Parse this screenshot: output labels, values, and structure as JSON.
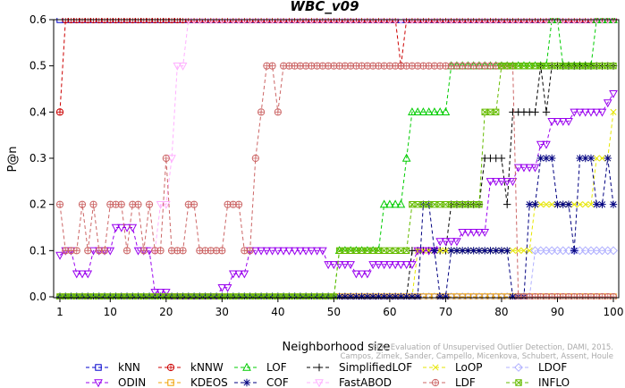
{
  "chart_data": {
    "type": "line",
    "title": "WBC_v09",
    "xlabel": "Neighborhood size",
    "ylabel": "P@n",
    "xlim": [
      1,
      100
    ],
    "ylim": [
      0,
      0.6
    ],
    "xticks": [
      1,
      10,
      20,
      30,
      40,
      50,
      60,
      70,
      80,
      90,
      100
    ],
    "yticks": [
      0.0,
      0.1,
      0.2,
      0.3,
      0.4,
      0.5,
      0.6
    ],
    "ytick_labels": [
      "0.0",
      "0.1",
      "0.2",
      "0.3",
      "0.4",
      "0.5",
      "0.6"
    ],
    "grid": false,
    "legend_position": "bottom",
    "watermark": [
      "ELKI Evaluation of Unsupervised Outlier Detection, DAMI, 2015.",
      "Campos, Zimek, Sander, Campello, Micenkova, Schubert, Assent, Houle"
    ],
    "series": [
      {
        "name": "kNN",
        "color": "#0000cc",
        "marker": "square",
        "segments": [
          [
            1,
            100,
            0.6
          ]
        ]
      },
      {
        "name": "kNNW",
        "color": "#cc0000",
        "marker": "circle",
        "segments": [
          [
            1,
            1,
            0.4
          ],
          [
            2,
            2,
            0.6
          ],
          [
            3,
            61,
            0.6
          ],
          [
            62,
            62,
            0.5
          ],
          [
            63,
            67,
            0.6
          ],
          [
            68,
            100,
            0.6
          ]
        ]
      },
      {
        "name": "LOF",
        "color": "#00cc00",
        "marker": "triangle-up",
        "segments": [
          [
            1,
            50,
            0.0
          ],
          [
            51,
            58,
            0.1
          ],
          [
            59,
            62,
            0.2
          ],
          [
            63,
            63,
            0.3
          ],
          [
            64,
            70,
            0.4
          ],
          [
            71,
            88,
            0.5
          ],
          [
            89,
            90,
            0.6
          ],
          [
            91,
            96,
            0.5
          ],
          [
            97,
            100,
            0.6
          ]
        ]
      },
      {
        "name": "SimplifiedLOF",
        "color": "#000000",
        "marker": "plus",
        "segments": [
          [
            1,
            63,
            0.0
          ],
          [
            64,
            70,
            0.1
          ],
          [
            71,
            74,
            0.2
          ],
          [
            75,
            76,
            0.2
          ],
          [
            77,
            80,
            0.3
          ],
          [
            81,
            81,
            0.2
          ],
          [
            82,
            86,
            0.4
          ],
          [
            87,
            87,
            0.5
          ],
          [
            88,
            88,
            0.4
          ],
          [
            89,
            100,
            0.5
          ]
        ]
      },
      {
        "name": "LoOP",
        "color": "#e6e600",
        "marker": "x",
        "segments": [
          [
            1,
            64,
            0.0
          ],
          [
            65,
            85,
            0.1
          ],
          [
            86,
            96,
            0.2
          ],
          [
            97,
            99,
            0.3
          ],
          [
            100,
            100,
            0.4
          ]
        ]
      },
      {
        "name": "LDOF",
        "color": "#b0b0ff",
        "marker": "diamond",
        "segments": [
          [
            1,
            85,
            0.0
          ],
          [
            86,
            100,
            0.1
          ]
        ]
      },
      {
        "name": "ODIN",
        "color": "#9900ee",
        "marker": "triangle-down",
        "segments": [
          [
            1,
            1,
            0.09
          ],
          [
            2,
            3,
            0.1
          ],
          [
            4,
            6,
            0.05
          ],
          [
            7,
            10,
            0.1
          ],
          [
            11,
            14,
            0.15
          ],
          [
            15,
            17,
            0.1
          ],
          [
            18,
            20,
            0.01
          ],
          [
            21,
            29,
            0.0
          ],
          [
            30,
            31,
            0.02
          ],
          [
            32,
            34,
            0.05
          ],
          [
            35,
            48,
            0.1
          ],
          [
            49,
            53,
            0.07
          ],
          [
            54,
            56,
            0.05
          ],
          [
            57,
            64,
            0.07
          ],
          [
            65,
            68,
            0.1
          ],
          [
            69,
            72,
            0.12
          ],
          [
            73,
            77,
            0.14
          ],
          [
            78,
            82,
            0.25
          ],
          [
            83,
            86,
            0.28
          ],
          [
            87,
            88,
            0.33
          ],
          [
            89,
            92,
            0.38
          ],
          [
            93,
            98,
            0.4
          ],
          [
            99,
            99,
            0.42
          ],
          [
            100,
            100,
            0.44
          ]
        ]
      },
      {
        "name": "KDEOS",
        "color": "#f0a000",
        "marker": "square",
        "segments": [
          [
            1,
            100,
            0.0
          ]
        ]
      },
      {
        "name": "COF",
        "color": "#000080",
        "marker": "asterisk",
        "segments": [
          [
            1,
            65,
            0.0
          ],
          [
            66,
            67,
            0.2
          ],
          [
            68,
            68,
            0.1
          ],
          [
            69,
            70,
            0.0
          ],
          [
            71,
            81,
            0.1
          ],
          [
            82,
            84,
            0.0
          ],
          [
            85,
            86,
            0.2
          ],
          [
            87,
            89,
            0.3
          ],
          [
            90,
            92,
            0.2
          ],
          [
            93,
            93,
            0.1
          ],
          [
            94,
            96,
            0.3
          ],
          [
            97,
            98,
            0.2
          ],
          [
            99,
            99,
            0.3
          ],
          [
            100,
            100,
            0.2
          ]
        ]
      },
      {
        "name": "FastABOD",
        "color": "#ffb0ff",
        "marker": "triangle-down",
        "segments": [
          [
            18,
            18,
            0.1
          ],
          [
            19,
            20,
            0.2
          ],
          [
            21,
            21,
            0.3
          ],
          [
            22,
            23,
            0.5
          ],
          [
            24,
            100,
            0.6
          ]
        ]
      },
      {
        "name": "LDF",
        "color": "#cc6666",
        "marker": "circle",
        "segments": [
          [
            1,
            1,
            0.2
          ],
          [
            2,
            4,
            0.1
          ],
          [
            5,
            5,
            0.2
          ],
          [
            6,
            6,
            0.1
          ],
          [
            7,
            7,
            0.2
          ],
          [
            8,
            9,
            0.1
          ],
          [
            10,
            12,
            0.2
          ],
          [
            13,
            13,
            0.1
          ],
          [
            14,
            15,
            0.2
          ],
          [
            16,
            16,
            0.1
          ],
          [
            17,
            17,
            0.2
          ],
          [
            18,
            19,
            0.1
          ],
          [
            20,
            20,
            0.3
          ],
          [
            21,
            23,
            0.1
          ],
          [
            24,
            25,
            0.2
          ],
          [
            26,
            30,
            0.1
          ],
          [
            31,
            33,
            0.2
          ],
          [
            34,
            35,
            0.1
          ],
          [
            36,
            36,
            0.3
          ],
          [
            37,
            37,
            0.4
          ],
          [
            38,
            39,
            0.5
          ],
          [
            40,
            40,
            0.4
          ],
          [
            41,
            67,
            0.5
          ],
          [
            68,
            82,
            0.5
          ],
          [
            83,
            100,
            0.0
          ]
        ]
      },
      {
        "name": "INFLO",
        "color": "#66bb00",
        "marker": "x-box",
        "segments": [
          [
            1,
            50,
            0.0
          ],
          [
            51,
            63,
            0.1
          ],
          [
            64,
            64,
            0.2
          ],
          [
            65,
            70,
            0.2
          ],
          [
            71,
            76,
            0.2
          ],
          [
            77,
            78,
            0.4
          ],
          [
            79,
            79,
            0.4
          ],
          [
            80,
            82,
            0.5
          ],
          [
            83,
            92,
            0.5
          ],
          [
            93,
            100,
            0.5
          ]
        ]
      }
    ]
  }
}
